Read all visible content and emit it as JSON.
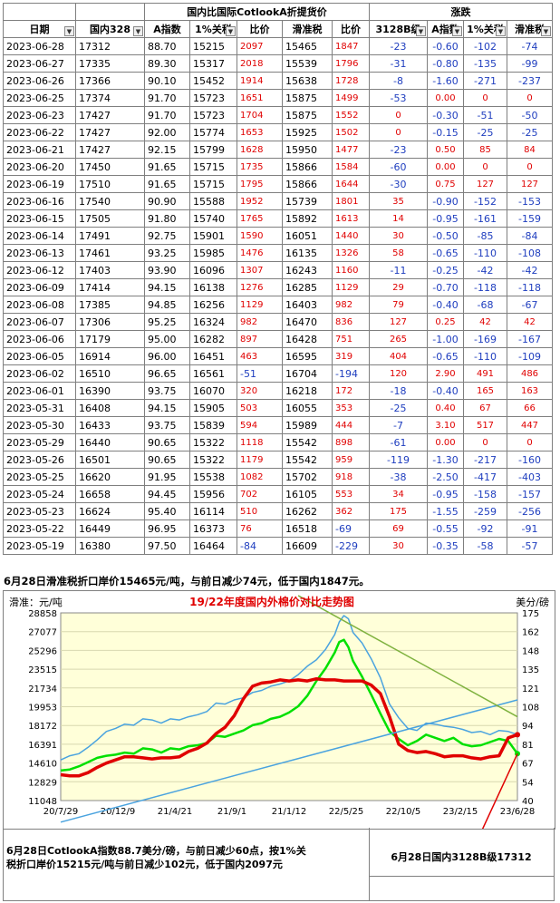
{
  "table": {
    "group_headers": [
      "国内比国际CotlookA折提货价",
      "涨跌"
    ],
    "columns": [
      "日期",
      "国内328",
      "A指数",
      "1%关税",
      "比价",
      "滑准税",
      "比价",
      "3128B级",
      "A指数",
      "1%关税",
      "滑准税"
    ],
    "rows": [
      [
        "2023-06-28",
        "17312",
        "88.70",
        "15215",
        "2097",
        "15465",
        "1847",
        "-23",
        "-0.60",
        "-102",
        "-74"
      ],
      [
        "2023-06-27",
        "17335",
        "89.30",
        "15317",
        "2018",
        "15539",
        "1796",
        "-31",
        "-0.80",
        "-135",
        "-99"
      ],
      [
        "2023-06-26",
        "17366",
        "90.10",
        "15452",
        "1914",
        "15638",
        "1728",
        "-8",
        "-1.60",
        "-271",
        "-237"
      ],
      [
        "2023-06-25",
        "17374",
        "91.70",
        "15723",
        "1651",
        "15875",
        "1499",
        "-53",
        "0.00",
        "0",
        "0"
      ],
      [
        "2023-06-23",
        "17427",
        "91.70",
        "15723",
        "1704",
        "15875",
        "1552",
        "0",
        "-0.30",
        "-51",
        "-50"
      ],
      [
        "2023-06-22",
        "17427",
        "92.00",
        "15774",
        "1653",
        "15925",
        "1502",
        "0",
        "-0.15",
        "-25",
        "-25"
      ],
      [
        "2023-06-21",
        "17427",
        "92.15",
        "15799",
        "1628",
        "15950",
        "1477",
        "-23",
        "0.50",
        "85",
        "84"
      ],
      [
        "2023-06-20",
        "17450",
        "91.65",
        "15715",
        "1735",
        "15866",
        "1584",
        "-60",
        "0.00",
        "0",
        "0"
      ],
      [
        "2023-06-19",
        "17510",
        "91.65",
        "15715",
        "1795",
        "15866",
        "1644",
        "-30",
        "0.75",
        "127",
        "127"
      ],
      [
        "2023-06-16",
        "17540",
        "90.90",
        "15588",
        "1952",
        "15739",
        "1801",
        "35",
        "-0.90",
        "-152",
        "-153"
      ],
      [
        "2023-06-15",
        "17505",
        "91.80",
        "15740",
        "1765",
        "15892",
        "1613",
        "14",
        "-0.95",
        "-161",
        "-159"
      ],
      [
        "2023-06-14",
        "17491",
        "92.75",
        "15901",
        "1590",
        "16051",
        "1440",
        "30",
        "-0.50",
        "-85",
        "-84"
      ],
      [
        "2023-06-13",
        "17461",
        "93.25",
        "15985",
        "1476",
        "16135",
        "1326",
        "58",
        "-0.65",
        "-110",
        "-108"
      ],
      [
        "2023-06-12",
        "17403",
        "93.90",
        "16096",
        "1307",
        "16243",
        "1160",
        "-11",
        "-0.25",
        "-42",
        "-42"
      ],
      [
        "2023-06-09",
        "17414",
        "94.15",
        "16138",
        "1276",
        "16285",
        "1129",
        "29",
        "-0.70",
        "-118",
        "-118"
      ],
      [
        "2023-06-08",
        "17385",
        "94.85",
        "16256",
        "1129",
        "16403",
        "982",
        "79",
        "-0.40",
        "-68",
        "-67"
      ],
      [
        "2023-06-07",
        "17306",
        "95.25",
        "16324",
        "982",
        "16470",
        "836",
        "127",
        "0.25",
        "42",
        "42"
      ],
      [
        "2023-06-06",
        "17179",
        "95.00",
        "16282",
        "897",
        "16428",
        "751",
        "265",
        "-1.00",
        "-169",
        "-167"
      ],
      [
        "2023-06-05",
        "16914",
        "96.00",
        "16451",
        "463",
        "16595",
        "319",
        "404",
        "-0.65",
        "-110",
        "-109"
      ],
      [
        "2023-06-02",
        "16510",
        "96.65",
        "16561",
        "-51",
        "16704",
        "-194",
        "120",
        "2.90",
        "491",
        "486"
      ],
      [
        "2023-06-01",
        "16390",
        "93.75",
        "16070",
        "320",
        "16218",
        "172",
        "-18",
        "-0.40",
        "165",
        "163"
      ],
      [
        "2023-05-31",
        "16408",
        "94.15",
        "15905",
        "503",
        "16055",
        "353",
        "-25",
        "0.40",
        "67",
        "66"
      ],
      [
        "2023-05-30",
        "16433",
        "93.75",
        "15839",
        "594",
        "15989",
        "444",
        "-7",
        "3.10",
        "517",
        "447"
      ],
      [
        "2023-05-29",
        "16440",
        "90.65",
        "15322",
        "1118",
        "15542",
        "898",
        "-61",
        "0.00",
        "0",
        "0"
      ],
      [
        "2023-05-26",
        "16501",
        "90.65",
        "15322",
        "1179",
        "15542",
        "959",
        "-119",
        "-1.30",
        "-217",
        "-160"
      ],
      [
        "2023-05-25",
        "16620",
        "91.95",
        "15538",
        "1082",
        "15702",
        "918",
        "-38",
        "-2.50",
        "-417",
        "-403"
      ],
      [
        "2023-05-24",
        "16658",
        "94.45",
        "15956",
        "702",
        "16105",
        "553",
        "34",
        "-0.95",
        "-158",
        "-157"
      ],
      [
        "2023-05-23",
        "16624",
        "95.40",
        "16114",
        "510",
        "16262",
        "362",
        "175",
        "-1.55",
        "-259",
        "-256"
      ],
      [
        "2023-05-22",
        "16449",
        "96.95",
        "16373",
        "76",
        "16518",
        "-69",
        "69",
        "-0.55",
        "-92",
        "-91"
      ],
      [
        "2023-05-19",
        "16380",
        "97.50",
        "16464",
        "-84",
        "16609",
        "-229",
        "30",
        "-0.35",
        "-58",
        "-57"
      ]
    ]
  },
  "notes": {
    "line1": "6月28日滑准税折口岸价15465元/吨，与前日减少74元，低于国内1847元。",
    "bottom_left": "6月28日CotlookA指数88.7美分/磅，与前日减少60点，按1%关税折口岸价15215元/吨与前日减少102元，低于国内2097元",
    "bottom_right": "6月28日国内3128B级17312"
  },
  "colors": {
    "red": "#e00000",
    "blue": "#1f3ebf",
    "green": "#00e000",
    "lightblue": "#4aa3df",
    "olive": "#7fb23f",
    "chart_bg": "#ffffd9"
  },
  "chart_data": {
    "type": "line",
    "title": "19/22年度国内外棉价对比走势图",
    "left_axis_label": "滑准：元/吨",
    "right_axis_label": "美分/磅",
    "x_ticks": [
      "20/7/29",
      "20/12/9",
      "21/4/21",
      "21/9/1",
      "21/1/12",
      "22/5/25",
      "22/10/5",
      "23/2/15",
      "23/6/28"
    ],
    "left_ticks": [
      11048,
      12829,
      14610,
      16391,
      18172,
      19953,
      21734,
      23515,
      25296,
      27077,
      28858
    ],
    "right_ticks": [
      40,
      54,
      67,
      81,
      94,
      108,
      121,
      135,
      148,
      162,
      175
    ],
    "ylim_left": [
      11048,
      28858
    ],
    "ylim_right": [
      40,
      175
    ],
    "series": [
      {
        "color": "#4aa3df",
        "axis": "left",
        "points": [
          [
            0,
            14900
          ],
          [
            10,
            15300
          ],
          [
            20,
            15500
          ],
          [
            30,
            16100
          ],
          [
            40,
            16800
          ],
          [
            50,
            17600
          ],
          [
            60,
            17900
          ],
          [
            70,
            18300
          ],
          [
            80,
            18200
          ],
          [
            90,
            18800
          ],
          [
            100,
            18700
          ],
          [
            110,
            18400
          ],
          [
            120,
            18800
          ],
          [
            130,
            18700
          ],
          [
            140,
            19000
          ],
          [
            150,
            19200
          ],
          [
            160,
            19500
          ],
          [
            170,
            20300
          ],
          [
            180,
            20200
          ],
          [
            190,
            20600
          ],
          [
            200,
            20800
          ],
          [
            210,
            21300
          ],
          [
            220,
            21500
          ],
          [
            230,
            21900
          ],
          [
            240,
            22100
          ],
          [
            250,
            22400
          ],
          [
            260,
            23000
          ],
          [
            270,
            23800
          ],
          [
            280,
            24400
          ],
          [
            290,
            25400
          ],
          [
            300,
            26800
          ],
          [
            305,
            28000
          ],
          [
            310,
            28600
          ],
          [
            315,
            28300
          ],
          [
            320,
            27000
          ],
          [
            330,
            26000
          ],
          [
            340,
            24500
          ],
          [
            350,
            22700
          ],
          [
            360,
            20200
          ],
          [
            370,
            18900
          ],
          [
            380,
            17900
          ],
          [
            390,
            17700
          ],
          [
            400,
            18400
          ],
          [
            410,
            18300
          ],
          [
            420,
            18100
          ],
          [
            430,
            18000
          ],
          [
            440,
            17800
          ],
          [
            450,
            17500
          ],
          [
            460,
            17600
          ],
          [
            470,
            17300
          ],
          [
            480,
            17700
          ],
          [
            490,
            17600
          ],
          [
            500,
            17300
          ]
        ]
      },
      {
        "color": "#00e000",
        "axis": "left",
        "points": [
          [
            0,
            13900
          ],
          [
            10,
            14000
          ],
          [
            20,
            14300
          ],
          [
            30,
            14700
          ],
          [
            40,
            15100
          ],
          [
            50,
            15300
          ],
          [
            60,
            15400
          ],
          [
            70,
            15600
          ],
          [
            80,
            15500
          ],
          [
            90,
            16000
          ],
          [
            100,
            15900
          ],
          [
            110,
            15600
          ],
          [
            120,
            16000
          ],
          [
            130,
            15900
          ],
          [
            140,
            16200
          ],
          [
            150,
            16300
          ],
          [
            160,
            16500
          ],
          [
            170,
            17200
          ],
          [
            180,
            17100
          ],
          [
            190,
            17400
          ],
          [
            200,
            17700
          ],
          [
            210,
            18200
          ],
          [
            220,
            18400
          ],
          [
            230,
            18800
          ],
          [
            240,
            19000
          ],
          [
            250,
            19400
          ],
          [
            260,
            20000
          ],
          [
            270,
            21000
          ],
          [
            280,
            22400
          ],
          [
            290,
            23600
          ],
          [
            300,
            25100
          ],
          [
            305,
            26100
          ],
          [
            310,
            26300
          ],
          [
            315,
            25600
          ],
          [
            320,
            24300
          ],
          [
            330,
            22800
          ],
          [
            340,
            21100
          ],
          [
            350,
            19300
          ],
          [
            360,
            17600
          ],
          [
            370,
            16900
          ],
          [
            380,
            16300
          ],
          [
            390,
            16700
          ],
          [
            400,
            17300
          ],
          [
            410,
            17000
          ],
          [
            420,
            16700
          ],
          [
            430,
            17000
          ],
          [
            440,
            16400
          ],
          [
            450,
            16200
          ],
          [
            460,
            16300
          ],
          [
            470,
            16600
          ],
          [
            480,
            16900
          ],
          [
            490,
            16700
          ],
          [
            500,
            15500
          ]
        ]
      },
      {
        "color": "#e00000",
        "axis": "left",
        "points": [
          [
            0,
            13500
          ],
          [
            10,
            13400
          ],
          [
            20,
            13400
          ],
          [
            30,
            13700
          ],
          [
            40,
            14200
          ],
          [
            50,
            14600
          ],
          [
            60,
            14900
          ],
          [
            70,
            15200
          ],
          [
            80,
            15200
          ],
          [
            90,
            15100
          ],
          [
            100,
            15000
          ],
          [
            110,
            15100
          ],
          [
            120,
            15100
          ],
          [
            130,
            15200
          ],
          [
            140,
            15700
          ],
          [
            150,
            16000
          ],
          [
            160,
            16500
          ],
          [
            170,
            17400
          ],
          [
            180,
            18000
          ],
          [
            190,
            19100
          ],
          [
            200,
            20700
          ],
          [
            210,
            21900
          ],
          [
            220,
            22200
          ],
          [
            230,
            22300
          ],
          [
            240,
            22500
          ],
          [
            250,
            22400
          ],
          [
            260,
            22500
          ],
          [
            270,
            22400
          ],
          [
            280,
            22600
          ],
          [
            290,
            22500
          ],
          [
            300,
            22500
          ],
          [
            310,
            22400
          ],
          [
            320,
            22400
          ],
          [
            330,
            22400
          ],
          [
            340,
            22000
          ],
          [
            350,
            21200
          ],
          [
            360,
            19000
          ],
          [
            370,
            16400
          ],
          [
            380,
            15800
          ],
          [
            390,
            15600
          ],
          [
            400,
            15700
          ],
          [
            410,
            15500
          ],
          [
            420,
            15200
          ],
          [
            430,
            15300
          ],
          [
            440,
            15300
          ],
          [
            450,
            15100
          ],
          [
            460,
            15000
          ],
          [
            470,
            15200
          ],
          [
            480,
            15300
          ],
          [
            490,
            17000
          ],
          [
            500,
            17300
          ]
        ]
      }
    ],
    "overlay_lines": [
      {
        "color": "#4aa3df",
        "from": [
          0,
          9000
        ],
        "to": [
          500,
          20600
        ]
      },
      {
        "color": "#7fb23f",
        "from": [
          260,
          30500
        ],
        "to": [
          500,
          19000
        ]
      },
      {
        "color": "#e00000",
        "from": [
          460,
          8000
        ],
        "to": [
          500,
          15500
        ]
      }
    ]
  }
}
